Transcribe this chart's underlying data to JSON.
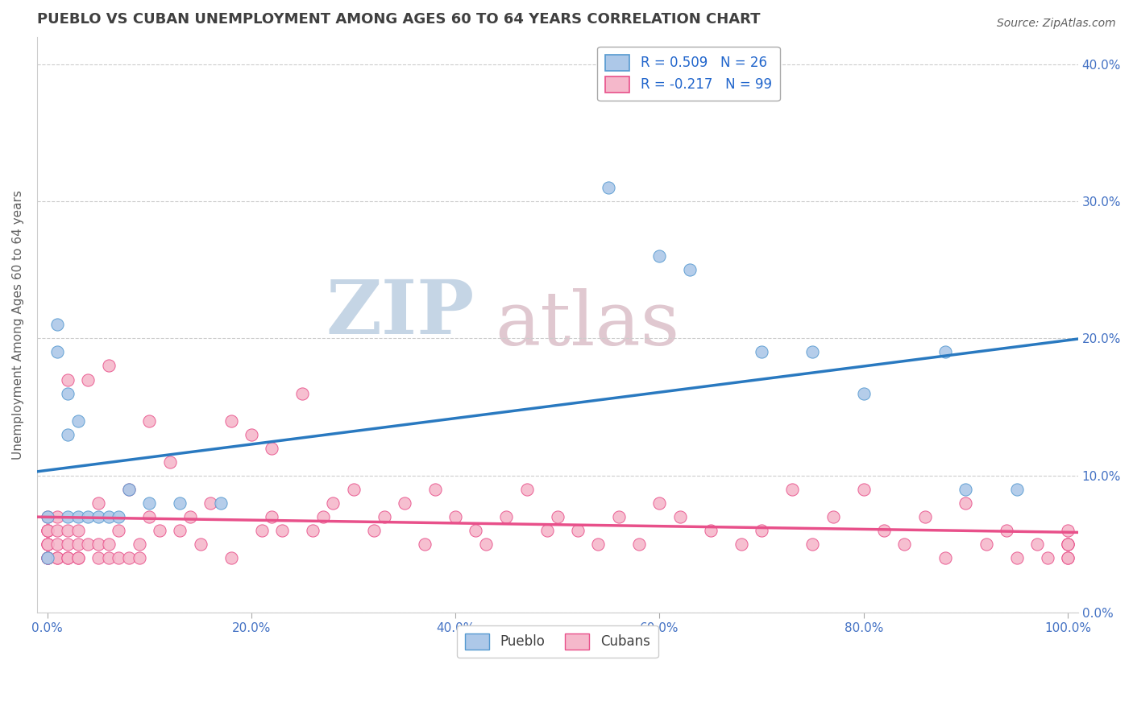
{
  "title": "PUEBLO VS CUBAN UNEMPLOYMENT AMONG AGES 60 TO 64 YEARS CORRELATION CHART",
  "source": "Source: ZipAtlas.com",
  "ylabel_label": "Unemployment Among Ages 60 to 64 years",
  "legend_pueblo": "Pueblo",
  "legend_cubans": "Cubans",
  "r_pueblo": "R = 0.509",
  "n_pueblo": "N = 26",
  "r_cubans": "R = -0.217",
  "n_cubans": "N = 99",
  "pueblo_color": "#adc8e8",
  "cuban_color": "#f5b8cb",
  "pueblo_line_color": "#2979c0",
  "cuban_line_color": "#e8508a",
  "pueblo_edge_color": "#5599d0",
  "cuban_edge_color": "#e8508a",
  "watermark_zip": "ZIP",
  "watermark_atlas": "atlas",
  "watermark_color_zip": "#c8d8e8",
  "watermark_color_atlas": "#d8c8d0",
  "pueblo_scatter_x": [
    0.0,
    0.0,
    0.01,
    0.01,
    0.02,
    0.02,
    0.02,
    0.03,
    0.03,
    0.04,
    0.05,
    0.06,
    0.07,
    0.08,
    0.1,
    0.13,
    0.17,
    0.55,
    0.6,
    0.63,
    0.7,
    0.75,
    0.8,
    0.88,
    0.9,
    0.95
  ],
  "pueblo_scatter_y": [
    0.07,
    0.04,
    0.19,
    0.21,
    0.13,
    0.16,
    0.07,
    0.07,
    0.14,
    0.07,
    0.07,
    0.07,
    0.07,
    0.09,
    0.08,
    0.08,
    0.08,
    0.31,
    0.26,
    0.25,
    0.19,
    0.19,
    0.16,
    0.19,
    0.09,
    0.09
  ],
  "cuban_scatter_x": [
    0.0,
    0.0,
    0.0,
    0.0,
    0.0,
    0.0,
    0.0,
    0.0,
    0.0,
    0.0,
    0.01,
    0.01,
    0.01,
    0.01,
    0.01,
    0.02,
    0.02,
    0.02,
    0.02,
    0.02,
    0.03,
    0.03,
    0.03,
    0.03,
    0.04,
    0.04,
    0.05,
    0.05,
    0.05,
    0.06,
    0.06,
    0.06,
    0.07,
    0.07,
    0.08,
    0.08,
    0.09,
    0.09,
    0.1,
    0.1,
    0.11,
    0.12,
    0.13,
    0.14,
    0.15,
    0.16,
    0.18,
    0.18,
    0.2,
    0.21,
    0.22,
    0.22,
    0.23,
    0.25,
    0.26,
    0.27,
    0.28,
    0.3,
    0.32,
    0.33,
    0.35,
    0.37,
    0.38,
    0.4,
    0.42,
    0.43,
    0.45,
    0.47,
    0.49,
    0.5,
    0.52,
    0.54,
    0.56,
    0.58,
    0.6,
    0.62,
    0.65,
    0.68,
    0.7,
    0.73,
    0.75,
    0.77,
    0.8,
    0.82,
    0.84,
    0.86,
    0.88,
    0.9,
    0.92,
    0.94,
    0.95,
    0.97,
    0.98,
    1.0,
    1.0,
    1.0,
    1.0,
    1.0,
    1.0
  ],
  "cuban_scatter_y": [
    0.04,
    0.04,
    0.04,
    0.05,
    0.05,
    0.05,
    0.06,
    0.06,
    0.06,
    0.07,
    0.04,
    0.04,
    0.05,
    0.06,
    0.07,
    0.04,
    0.04,
    0.05,
    0.06,
    0.17,
    0.04,
    0.04,
    0.05,
    0.06,
    0.05,
    0.17,
    0.04,
    0.05,
    0.08,
    0.04,
    0.05,
    0.18,
    0.04,
    0.06,
    0.04,
    0.09,
    0.04,
    0.05,
    0.07,
    0.14,
    0.06,
    0.11,
    0.06,
    0.07,
    0.05,
    0.08,
    0.04,
    0.14,
    0.13,
    0.06,
    0.12,
    0.07,
    0.06,
    0.16,
    0.06,
    0.07,
    0.08,
    0.09,
    0.06,
    0.07,
    0.08,
    0.05,
    0.09,
    0.07,
    0.06,
    0.05,
    0.07,
    0.09,
    0.06,
    0.07,
    0.06,
    0.05,
    0.07,
    0.05,
    0.08,
    0.07,
    0.06,
    0.05,
    0.06,
    0.09,
    0.05,
    0.07,
    0.09,
    0.06,
    0.05,
    0.07,
    0.04,
    0.08,
    0.05,
    0.06,
    0.04,
    0.05,
    0.04,
    0.06,
    0.05,
    0.04,
    0.05,
    0.04,
    0.05
  ],
  "xlim": [
    -0.01,
    1.01
  ],
  "ylim": [
    0.0,
    0.42
  ],
  "x_tick_vals": [
    0.0,
    0.2,
    0.4,
    0.6,
    0.8,
    1.0
  ],
  "y_tick_vals": [
    0.0,
    0.1,
    0.2,
    0.3,
    0.4
  ],
  "background_color": "#ffffff",
  "grid_color": "#cccccc",
  "tick_color": "#4472c4",
  "title_color": "#404040",
  "label_color": "#606060"
}
